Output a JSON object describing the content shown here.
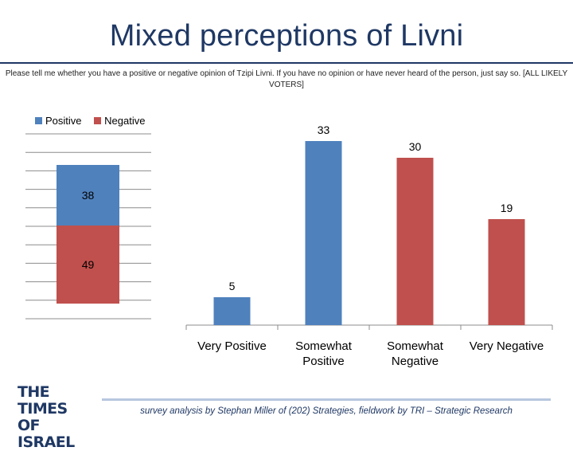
{
  "title": "Mixed perceptions of Livni",
  "subtitle": "Please tell me whether you have a positive or negative opinion of Tzipi Livni. If you have no opinion or have never heard of the person, just say so. [ALL LIKELY VOTERS]",
  "footer": "survey analysis by Stephan Miller of (202) Strategies, fieldwork by TRI – Strategic Research",
  "logo": "THE TIMES OF ISRAEL",
  "colors": {
    "positive": "#4f81bd",
    "negative": "#c0504d",
    "title": "#1f3864"
  },
  "chart_data": [
    {
      "type": "bar",
      "subtype": "stacked",
      "legend": [
        "Positive",
        "Negative"
      ],
      "legend_position": "top-left",
      "series": [
        {
          "name": "Positive",
          "values": [
            38
          ]
        },
        {
          "name": "Negative",
          "values": [
            49
          ]
        }
      ],
      "categories": [
        ""
      ],
      "grid": true
    },
    {
      "type": "bar",
      "categories": [
        "Very Positive",
        "Somewhat Positive",
        "Somewhat Negative",
        "Very Negative"
      ],
      "values": [
        5,
        33,
        30,
        19
      ],
      "bar_colors": [
        "#4f81bd",
        "#4f81bd",
        "#c0504d",
        "#c0504d"
      ],
      "grid": false
    }
  ]
}
